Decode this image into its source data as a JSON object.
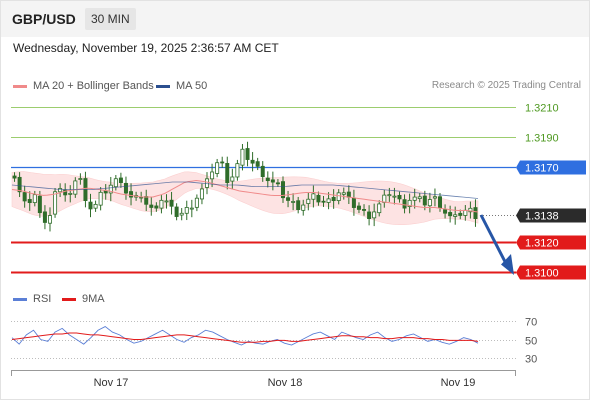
{
  "header": {
    "symbol": "GBP/USD",
    "timeframe": "30 MIN",
    "datetime": "Wednesday, November 19, 2025 2:36:57 AM CET",
    "copyright": "Research © 2025 Trading Central"
  },
  "legend": {
    "ma20_label": "MA 20 + Bollinger Bands",
    "ma50_label": "MA 50",
    "rsi_label": "RSI",
    "ma9_label": "9MA"
  },
  "colors": {
    "ma20": "#f08a8a",
    "ma50": "#2b4f8f",
    "resistance": "#9ccd6e",
    "pivot": "#2f6fe0",
    "support": "#e21b1b",
    "current": "#2b2b2b",
    "arrow": "#2756a6",
    "rsi": "#5b7fd6"
  },
  "chart_data": [
    {
      "type": "candlestick",
      "x_tick_labels": [
        "Nov 17",
        "Nov 18",
        "Nov 19"
      ],
      "ylim": [
        1.3095,
        1.3215
      ],
      "levels": [
        {
          "value": 1.321,
          "label": "1.3210",
          "kind": "resistance"
        },
        {
          "value": 1.319,
          "label": "1.3190",
          "kind": "resistance"
        },
        {
          "value": 1.317,
          "label": "1.3170",
          "kind": "pivot"
        },
        {
          "value": 1.3138,
          "label": "1.3138",
          "kind": "current"
        },
        {
          "value": 1.312,
          "label": "1.3120",
          "kind": "support"
        },
        {
          "value": 1.31,
          "label": "1.3100",
          "kind": "support"
        }
      ],
      "close_path": [
        1.3165,
        1.315,
        1.3142,
        1.3155,
        1.3128,
        1.314,
        1.316,
        1.3148,
        1.3155,
        1.3165,
        1.315,
        1.314,
        1.315,
        1.3155,
        1.316,
        1.3162,
        1.315,
        1.3148,
        1.3152,
        1.314,
        1.3145,
        1.315,
        1.3142,
        1.3138,
        1.314,
        1.3145,
        1.3152,
        1.3158,
        1.317,
        1.3175,
        1.3162,
        1.3165,
        1.318,
        1.3176,
        1.317,
        1.3166,
        1.316,
        1.3158,
        1.315,
        1.3146,
        1.3144,
        1.3146,
        1.315,
        1.3148,
        1.3146,
        1.315,
        1.3155,
        1.3148,
        1.3144,
        1.314,
        1.3138,
        1.3142,
        1.3148,
        1.3154,
        1.3148,
        1.3145,
        1.315,
        1.3148,
        1.3146,
        1.315,
        1.3145,
        1.3138,
        1.3135,
        1.314,
        1.3142,
        1.3138
      ],
      "ma20": [
        1.3155,
        1.3154,
        1.3152,
        1.3151,
        1.3152,
        1.3154,
        1.3155,
        1.3156,
        1.3155,
        1.3154,
        1.3152,
        1.3151,
        1.315,
        1.315,
        1.3152,
        1.3156,
        1.316,
        1.3161,
        1.316,
        1.3158,
        1.3156,
        1.3154,
        1.3153,
        1.3152,
        1.3151,
        1.3151,
        1.3152,
        1.3153,
        1.3153,
        1.3152,
        1.3151,
        1.315,
        1.3149,
        1.3148,
        1.3147,
        1.3146,
        1.3145,
        1.3144,
        1.3143,
        1.3143,
        1.3142,
        1.3141,
        1.3141,
        1.314
      ],
      "ma50": [
        1.3158,
        1.3157,
        1.3156,
        1.3155,
        1.3155,
        1.3155,
        1.3156,
        1.3157,
        1.3158,
        1.3159,
        1.316,
        1.316,
        1.3159,
        1.3158,
        1.3158,
        1.3157,
        1.3157,
        1.3157,
        1.3158,
        1.3158,
        1.3158,
        1.3157,
        1.3156,
        1.3155,
        1.3154,
        1.3153,
        1.3152,
        1.3151,
        1.315,
        1.3149
      ],
      "band_width": 0.0012
    },
    {
      "type": "line",
      "name": "RSI",
      "ylim": [
        25,
        75
      ],
      "y_tick_labels": [
        {
          "value": 70,
          "label": "70"
        },
        {
          "value": 50,
          "label": "50"
        },
        {
          "value": 30,
          "label": "30"
        }
      ],
      "rsi": [
        52,
        45,
        55,
        60,
        50,
        48,
        58,
        62,
        55,
        50,
        45,
        52,
        60,
        64,
        58,
        55,
        50,
        46,
        48,
        52,
        56,
        60,
        55,
        50,
        47,
        52,
        55,
        60,
        58,
        54,
        50,
        47,
        44,
        48,
        46,
        45,
        48,
        50,
        46,
        44,
        48,
        52,
        56,
        58,
        54,
        50,
        58,
        55,
        52,
        50,
        55,
        58,
        52,
        48,
        50,
        54,
        56,
        52,
        48,
        50,
        47,
        45,
        48,
        52,
        50,
        46
      ],
      "ma9": [
        50,
        51,
        52,
        53,
        54,
        55,
        56,
        56,
        57,
        57,
        56,
        55,
        55,
        54,
        53,
        52,
        51,
        50,
        50,
        51,
        52,
        53,
        54,
        55,
        55,
        54,
        53,
        52,
        51,
        50,
        49,
        48,
        47,
        47,
        47,
        48,
        48,
        49,
        49,
        48,
        48,
        49,
        50,
        51,
        52,
        53,
        54,
        54,
        53,
        53,
        52,
        52,
        51,
        51,
        52,
        52,
        52,
        51,
        51,
        50,
        50,
        49,
        49,
        49,
        49,
        48
      ]
    }
  ]
}
